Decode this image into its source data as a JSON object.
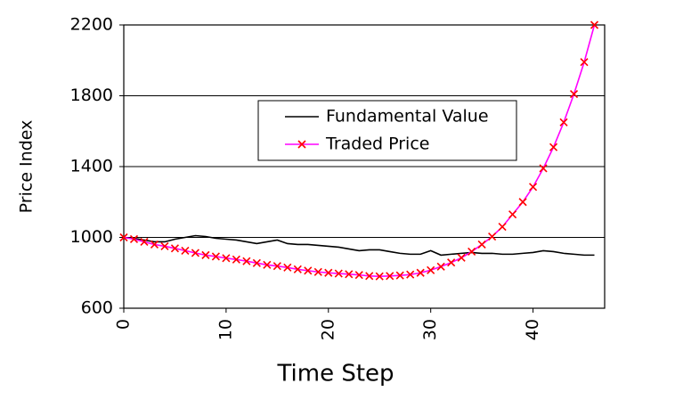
{
  "chart_data": {
    "type": "line",
    "x_label": "Time Step",
    "y_label": "Price Index",
    "x": [
      0,
      1,
      2,
      3,
      4,
      5,
      6,
      7,
      8,
      9,
      10,
      11,
      12,
      13,
      14,
      15,
      16,
      17,
      18,
      19,
      20,
      21,
      22,
      23,
      24,
      25,
      26,
      27,
      28,
      29,
      30,
      31,
      32,
      33,
      34,
      35,
      36,
      37,
      38,
      39,
      40,
      41,
      42,
      43,
      44,
      45,
      46
    ],
    "series": [
      {
        "name": "Fundamental Value",
        "color": "#000000",
        "marker": "none",
        "values": [
          1000,
          995,
          985,
          975,
          975,
          990,
          1000,
          1010,
          1005,
          995,
          990,
          985,
          975,
          965,
          975,
          985,
          965,
          960,
          960,
          955,
          950,
          945,
          935,
          925,
          930,
          930,
          920,
          910,
          905,
          905,
          925,
          900,
          905,
          910,
          915,
          910,
          910,
          905,
          905,
          910,
          915,
          925,
          920,
          910,
          905,
          900,
          900
        ]
      },
      {
        "name": "Traded Price",
        "color": "#ff00ff",
        "marker": "x",
        "marker_color": "#ff0000",
        "values": [
          1000,
          990,
          975,
          960,
          950,
          938,
          925,
          912,
          900,
          892,
          883,
          875,
          866,
          855,
          845,
          838,
          830,
          820,
          812,
          805,
          800,
          796,
          792,
          788,
          782,
          780,
          782,
          785,
          790,
          800,
          815,
          835,
          858,
          885,
          920,
          960,
          1005,
          1060,
          1130,
          1200,
          1285,
          1390,
          1510,
          1650,
          1810,
          1990,
          2200
        ]
      }
    ],
    "xlim": [
      0,
      47
    ],
    "xticks": [
      0,
      10,
      20,
      30,
      40
    ],
    "ylim": [
      600,
      2200
    ],
    "yticks": [
      600,
      1000,
      1400,
      1800,
      2200
    ],
    "grid": true,
    "legend": "center"
  }
}
